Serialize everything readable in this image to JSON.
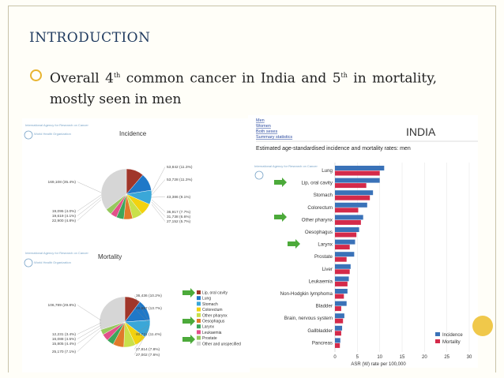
{
  "slide": {
    "title": "INTRODUCTION",
    "bullet": {
      "part1": "Overall 4",
      "sup1": "th",
      "part2": " common cancer in India and 5",
      "sup2": "th",
      "part3": " in mortality, mostly seen in men"
    }
  },
  "left_panel": {
    "agency": "International Agency for Research on Cancer",
    "who": "World Health Organization",
    "incidence_title": "Incidence",
    "mortality_title": "Mortality",
    "incidence_labels_left": [
      "169,108 (35.4%)",
      "19,095 (4.0%)",
      "19,619 (4.1%)",
      "22,900 (4.8%)"
    ],
    "incidence_labels_right": [
      "53,842 (11.3%)",
      "53,728 (11.3%)",
      "43,386 (9.1%)",
      "36,917 (7.7%)",
      "31,738 (6.6%)",
      "27,152 (5.7%)"
    ],
    "mortality_labels_left": [
      "106,789 (29.8%)",
      "12,231 (3.4%)",
      "16,088 (4.5%)",
      "15,805 (4.4%)",
      "25,170 (7.1%)"
    ],
    "mortality_labels_right": [
      "36,436 (10.2%)",
      "48,697 (13.7%)",
      "40,721 (11.4%)",
      "27,814 (7.8%)",
      "27,002 (7.6%)"
    ],
    "legend": [
      {
        "label": "Lip, oral cavity",
        "color": "#a0362a"
      },
      {
        "label": "Lung",
        "color": "#1f78c8"
      },
      {
        "label": "Stomach",
        "color": "#3aa7d8"
      },
      {
        "label": "Colorectum",
        "color": "#f2d20f"
      },
      {
        "label": "Other pharynx",
        "color": "#c9e04a"
      },
      {
        "label": "Oesophagus",
        "color": "#e07a2b"
      },
      {
        "label": "Larynx",
        "color": "#3da65a"
      },
      {
        "label": "Leukaemia",
        "color": "#e2508a"
      },
      {
        "label": "Prostate",
        "color": "#96c95e"
      },
      {
        "label": "Other and unspecified",
        "color": "#d6d6d6"
      }
    ]
  },
  "right_panel": {
    "links": [
      "Men",
      "Women",
      "Both sexes",
      "Summary statistics"
    ],
    "country": "INDIA",
    "subtitle": "Estimated age-standardised incidence and mortality rates: men",
    "agency": "International Agency for Research on Cancer",
    "legend_incidence": "Incidence",
    "legend_mortality": "Mortality",
    "incidence_color": "#3a72b8",
    "mortality_color": "#d42a4a"
  },
  "chart_data": [
    {
      "type": "pie",
      "title": "Incidence",
      "categories": [
        "Lip, oral cavity",
        "Lung",
        "Stomach",
        "Colorectum",
        "Other pharynx",
        "Oesophagus",
        "Larynx",
        "Leukaemia",
        "Prostate",
        "Other and unspecified"
      ],
      "values": [
        53842,
        53728,
        43386,
        36917,
        31738,
        27152,
        22900,
        19619,
        19095,
        169108
      ]
    },
    {
      "type": "pie",
      "title": "Mortality",
      "categories": [
        "Lip, oral cavity",
        "Lung",
        "Stomach",
        "Colorectum",
        "Other pharynx",
        "Oesophagus",
        "Larynx",
        "Leukaemia",
        "Prostate",
        "Other and unspecified"
      ],
      "values": [
        36436,
        48697,
        40721,
        27814,
        27002,
        25170,
        15805,
        16088,
        12231,
        106789
      ]
    },
    {
      "type": "bar",
      "title": "INDIA",
      "categories": [
        "Lung",
        "Lip, oral cavity",
        "Stomach",
        "Colorectum",
        "Other pharynx",
        "Oesophagus",
        "Larynx",
        "Prostate",
        "Liver",
        "Leukaemia",
        "Non-Hodgkin lymphoma",
        "Bladder",
        "Brain, nervous system",
        "Gallbladder",
        "Pancreas"
      ],
      "series": [
        {
          "name": "Incidence",
          "values": [
            11.0,
            10.0,
            8.5,
            7.2,
            6.3,
            5.4,
            4.5,
            4.3,
            3.5,
            3.1,
            2.8,
            2.6,
            2.1,
            1.6,
            1.2
          ]
        },
        {
          "name": "Mortality",
          "values": [
            10.0,
            7.0,
            7.8,
            5.2,
            5.8,
            4.8,
            3.3,
            2.6,
            3.3,
            2.8,
            2.0,
            1.4,
            1.8,
            1.4,
            1.1
          ]
        }
      ],
      "xlabel": "ASR (W) rate per 100,000",
      "xticks": [
        "0",
        "5",
        "10",
        "15",
        "20",
        "25",
        "30"
      ],
      "xlim": [
        0,
        30
      ]
    }
  ]
}
